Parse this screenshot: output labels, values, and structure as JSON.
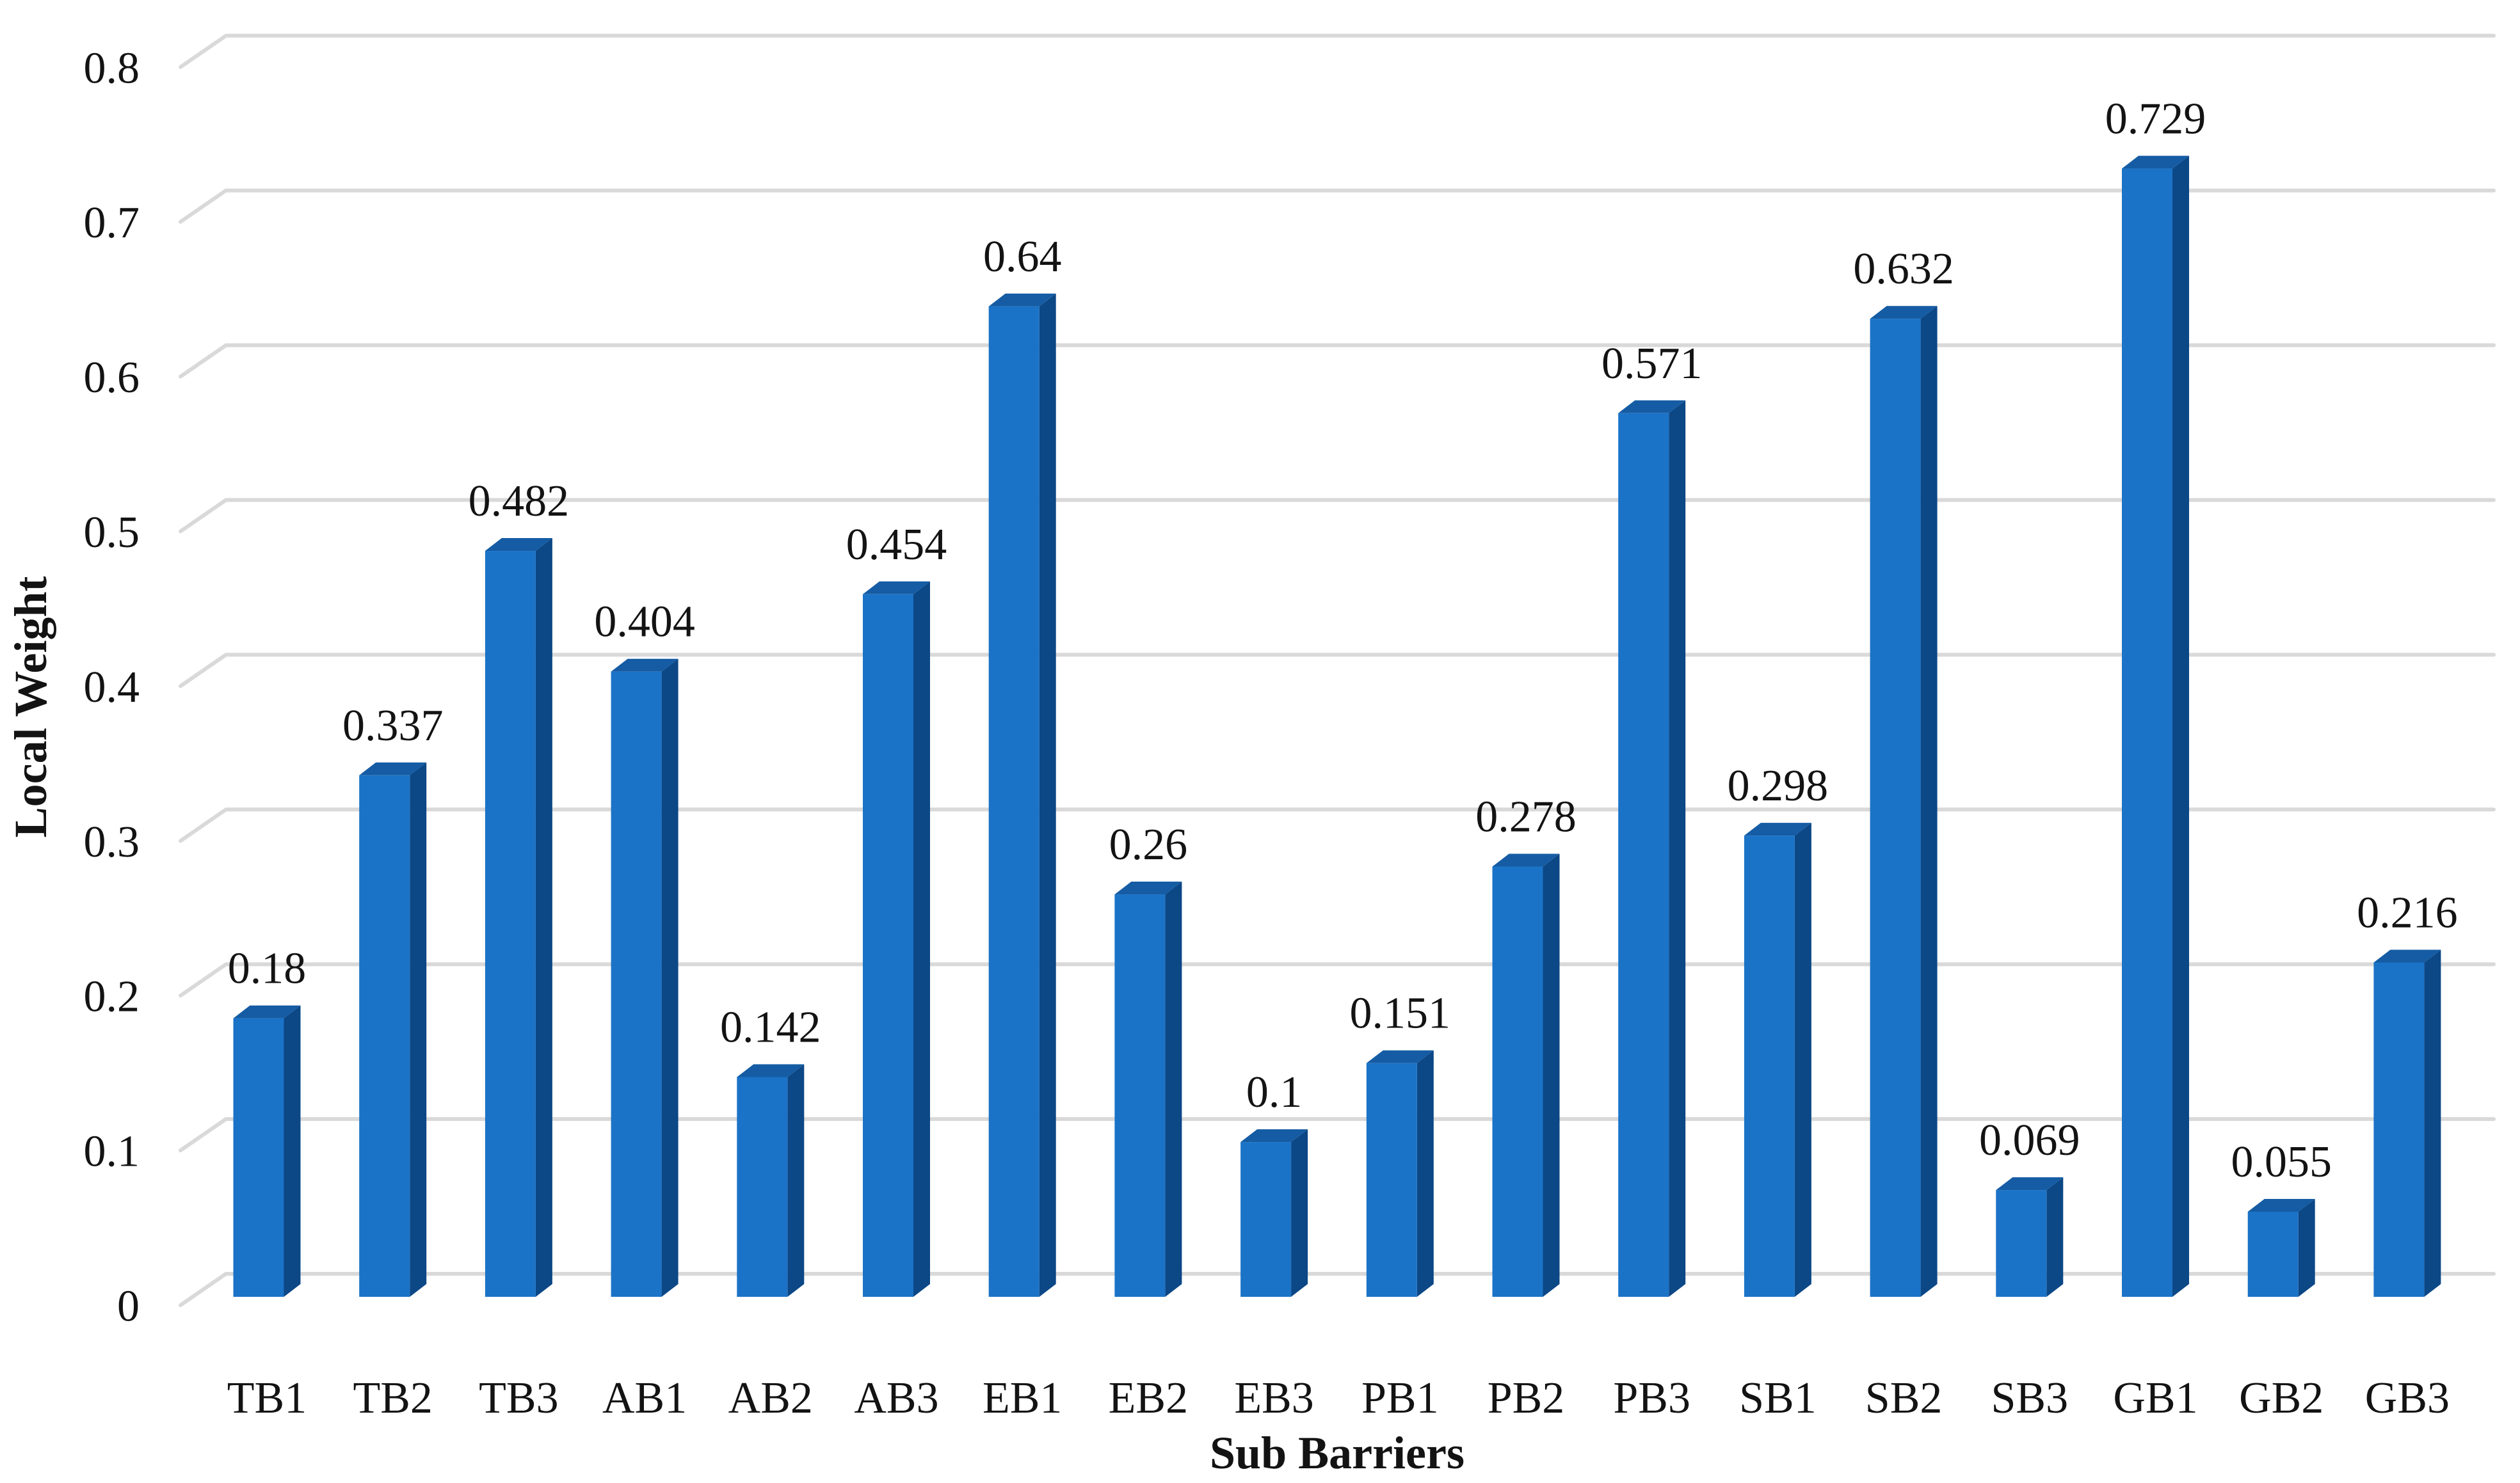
{
  "figure": {
    "background": "#FFFFFF"
  },
  "chart_data": {
    "type": "bar",
    "style": "3d-column",
    "title": "",
    "xlabel": "Sub Barriers",
    "ylabel": "Local Weight",
    "categories": [
      "TB1",
      "TB2",
      "TB3",
      "AB1",
      "AB2",
      "AB3",
      "EB1",
      "EB2",
      "EB3",
      "PB1",
      "PB2",
      "PB3",
      "SB1",
      "SB2",
      "SB3",
      "GB1",
      "GB2",
      "GB3"
    ],
    "values": [
      0.18,
      0.337,
      0.482,
      0.404,
      0.142,
      0.454,
      0.64,
      0.26,
      0.1,
      0.151,
      0.278,
      0.571,
      0.298,
      0.632,
      0.069,
      0.729,
      0.055,
      0.216
    ],
    "value_labels": [
      "0.18",
      "0.337",
      "0.482",
      "0.404",
      "0.142",
      "0.454",
      "0.64",
      "0.26",
      "0.1",
      "0.151",
      "0.278",
      "0.571",
      "0.298",
      "0.632",
      "0.069",
      "0.729",
      "0.055",
      "0.216"
    ],
    "y_axis": {
      "min": 0,
      "max": 0.8,
      "tick_step": 0.1,
      "tick_labels": [
        "0",
        "0.1",
        "0.2",
        "0.3",
        "0.4",
        "0.5",
        "0.6",
        "0.7",
        "0.8"
      ]
    },
    "grid": true,
    "legend": false,
    "colors": {
      "bar_front": "#1B73C7",
      "bar_top": "#155CA4",
      "bar_side": "#0C4786",
      "gridline": "#D9D9D9",
      "text": "#131313"
    }
  }
}
